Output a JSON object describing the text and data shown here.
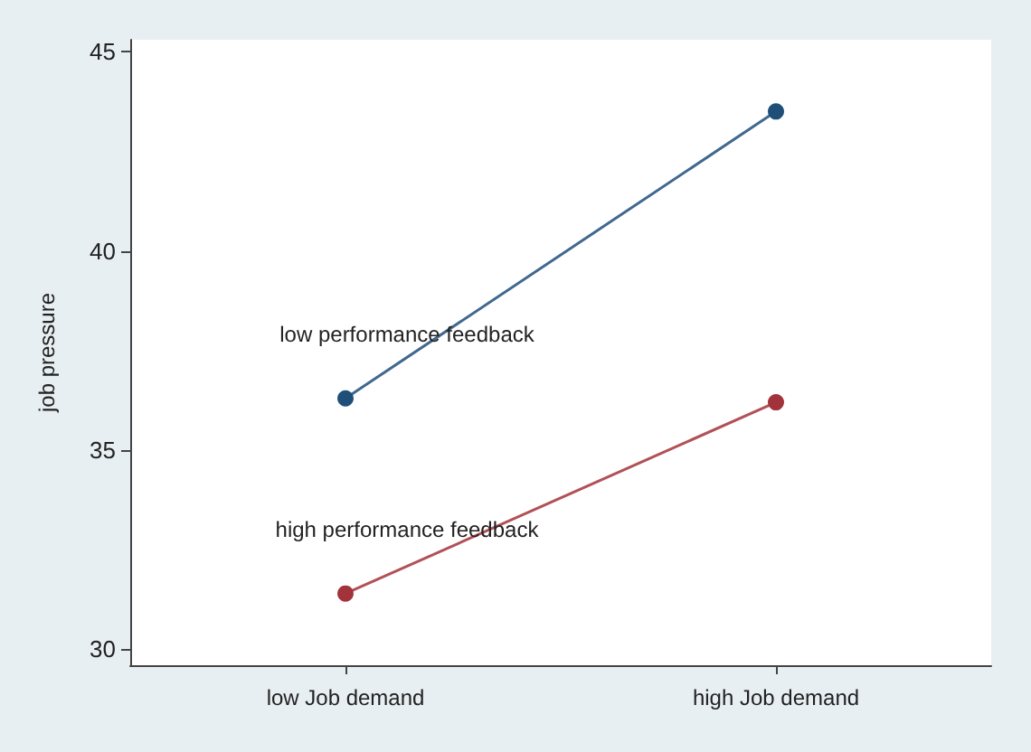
{
  "chart_data": {
    "type": "line",
    "ylabel": "job pressure",
    "categories": [
      "low Job demand",
      "high Job demand"
    ],
    "series": [
      {
        "name": "low performance feedback",
        "color": "#1f4e79",
        "values": [
          36.3,
          43.5
        ]
      },
      {
        "name": "high performance feedback",
        "color": "#a3333a",
        "values": [
          31.4,
          36.2
        ]
      }
    ],
    "ylim": [
      29.6,
      45.3
    ],
    "yticks": [
      30,
      35,
      40,
      45
    ],
    "grid": false,
    "legend": false,
    "marker": "circle",
    "line_style": "solid"
  }
}
